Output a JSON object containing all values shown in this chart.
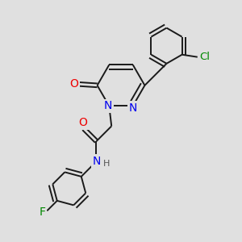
{
  "background_color": "#e0e0e0",
  "bond_color": "#1a1a1a",
  "atom_colors": {
    "N": "#0000ee",
    "O": "#ee0000",
    "F": "#008800",
    "Cl": "#008800"
  },
  "figsize": [
    3.0,
    3.0
  ],
  "dpi": 100,
  "xlim": [
    0,
    10
  ],
  "ylim": [
    0,
    10
  ]
}
